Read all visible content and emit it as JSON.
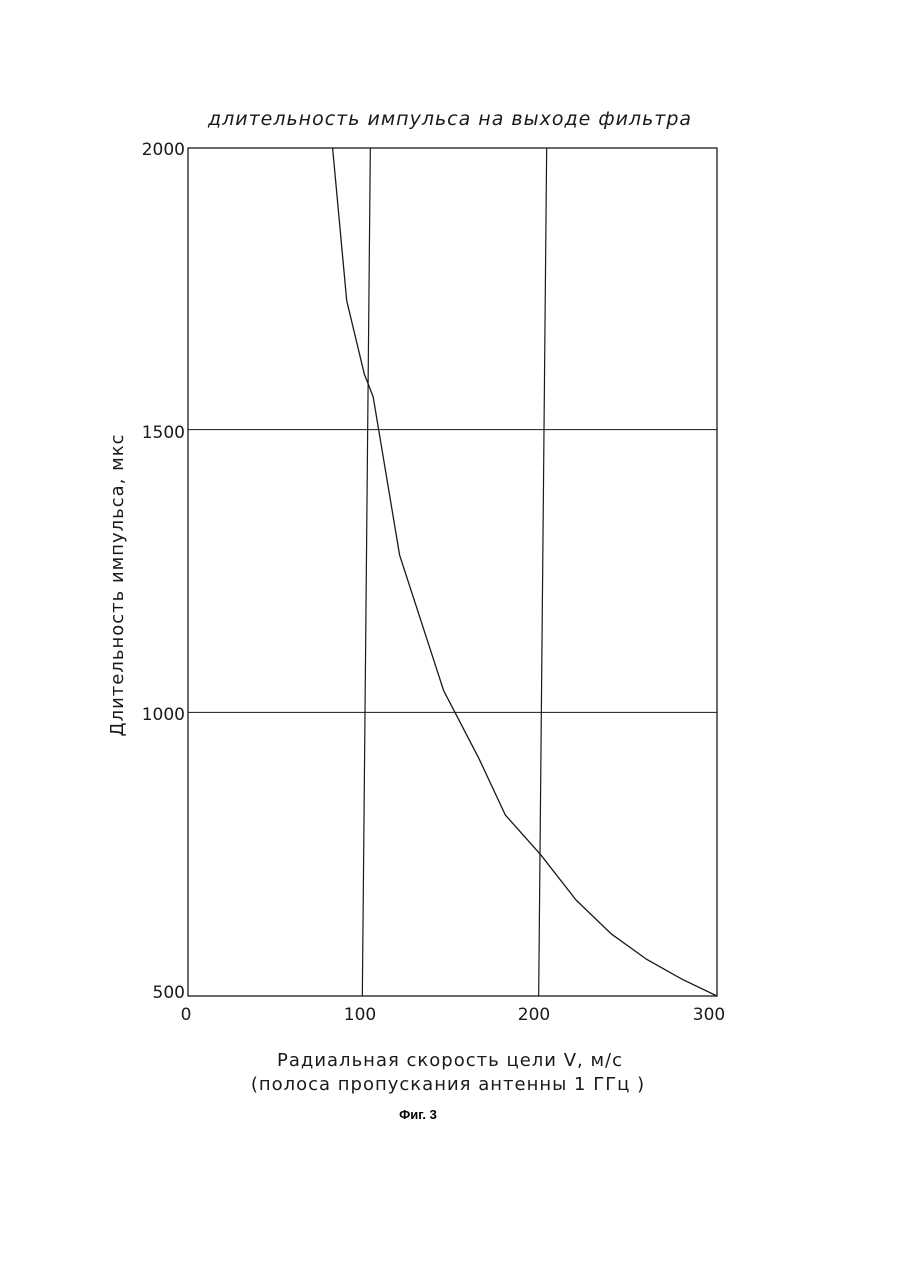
{
  "chart_data": {
    "type": "line",
    "title": "длительность импульса на выходе фильтра",
    "xlabel_line1": "Радиальная скорость цели V, м/с",
    "xlabel_line2": "(полоса пропускания антенны 1 ГГц )",
    "ylabel": "Длительность импульса, мкс",
    "xlim": [
      0,
      300
    ],
    "ylim": [
      500,
      2000
    ],
    "x_ticks": [
      "0",
      "100",
      "200",
      "300"
    ],
    "y_ticks": [
      "2000",
      "1500",
      "1000",
      "500"
    ],
    "grid": true,
    "series": [
      {
        "x": [
          82,
          90,
          100,
          105,
          120,
          145,
          165,
          180,
          200,
          220,
          240,
          260,
          280,
          300
        ],
        "y": [
          2000,
          1730,
          1600,
          1560,
          1280,
          1040,
          920,
          820,
          750,
          670,
          610,
          565,
          530,
          500
        ]
      }
    ]
  },
  "caption": "Фиг. 3"
}
